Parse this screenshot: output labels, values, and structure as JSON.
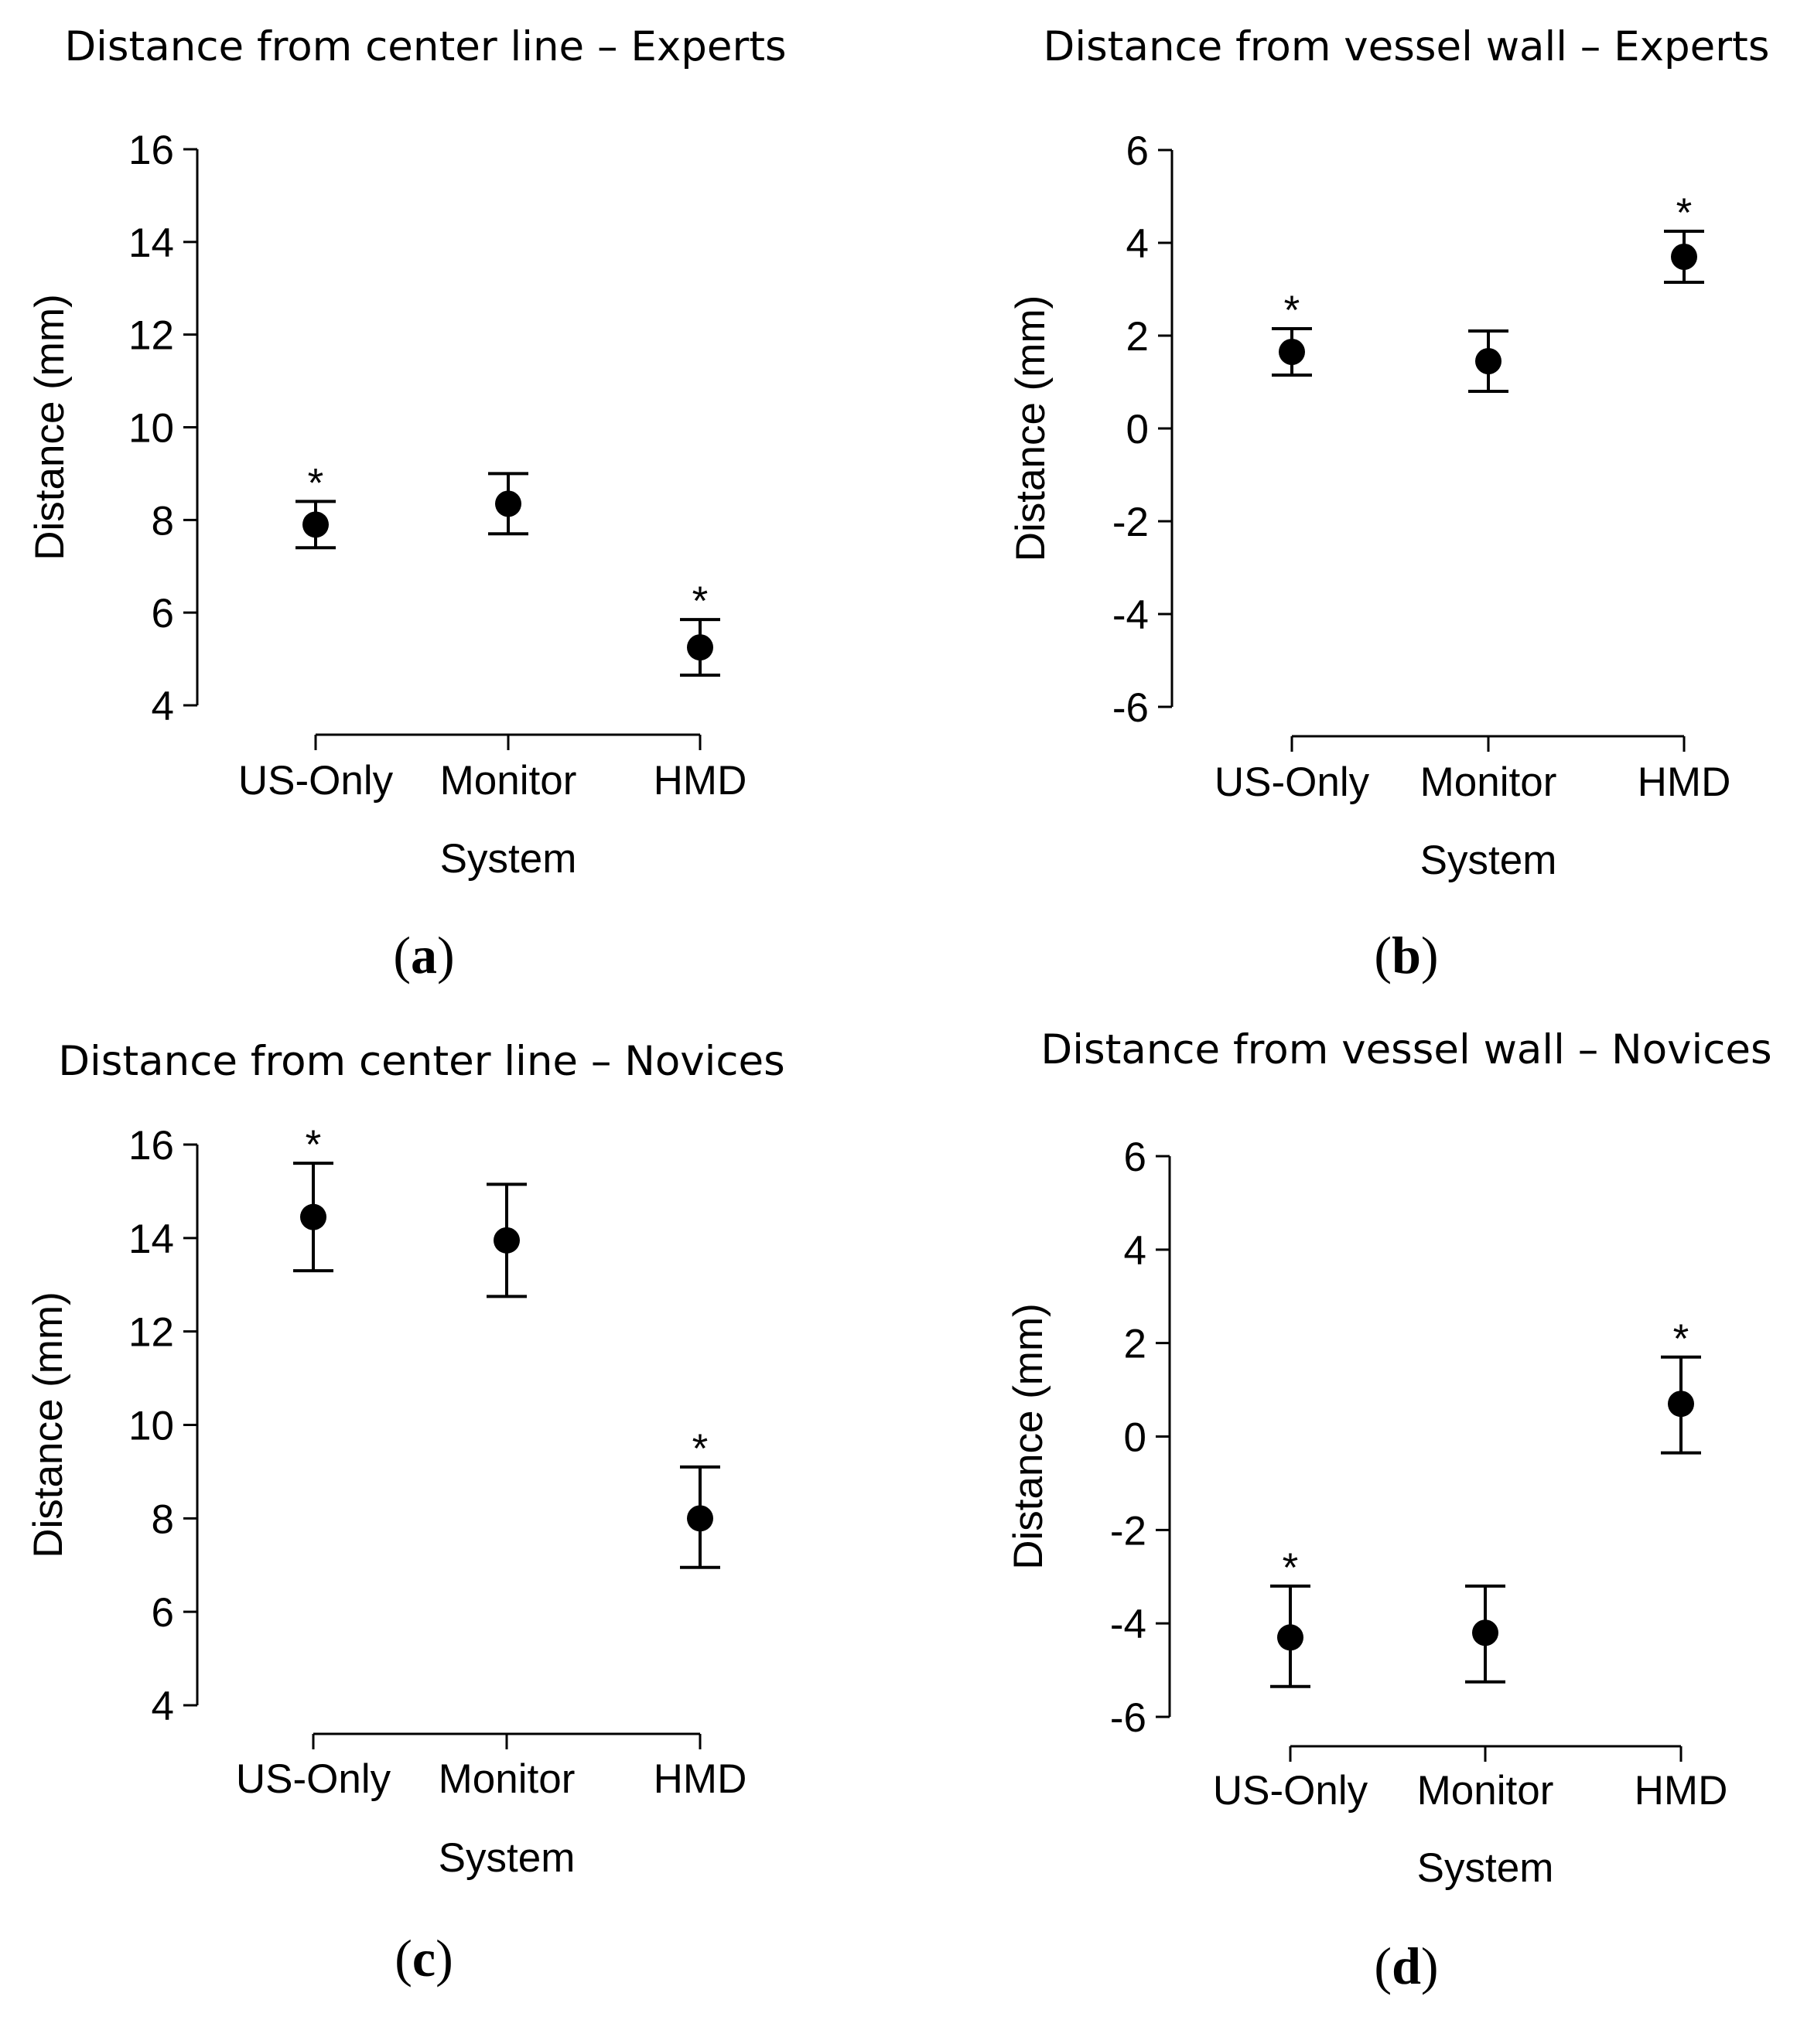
{
  "chart_data": [
    {
      "type": "scatter",
      "panel_label": "a",
      "title": "Distance from center line – Experts",
      "xlabel": "System",
      "ylabel": "Distance (mm)",
      "categories": [
        "US-Only",
        "Monitor",
        "HMD"
      ],
      "yticks": [
        "4",
        "6",
        "8",
        "10",
        "12",
        "14",
        "16"
      ],
      "ylim": [
        4,
        16
      ],
      "values": [
        7.9,
        8.35,
        5.25
      ],
      "error_low": [
        7.4,
        7.7,
        4.65
      ],
      "error_high": [
        8.4,
        9.0,
        5.85
      ],
      "significant": [
        "*",
        "",
        "*"
      ]
    },
    {
      "type": "scatter",
      "panel_label": "b",
      "title": "Distance from vessel wall – Experts",
      "xlabel": "System",
      "ylabel": "Distance (mm)",
      "categories": [
        "US-Only",
        "Monitor",
        "HMD"
      ],
      "yticks": [
        "-6",
        "-4",
        "-2",
        "0",
        "2",
        "4",
        "6"
      ],
      "ylim": [
        -6,
        6
      ],
      "values": [
        1.65,
        1.45,
        3.7
      ],
      "error_low": [
        1.15,
        0.8,
        3.15
      ],
      "error_high": [
        2.15,
        2.1,
        4.25
      ],
      "significant": [
        "*",
        "",
        "*"
      ]
    },
    {
      "type": "scatter",
      "panel_label": "c",
      "title": "Distance from center line – Novices",
      "xlabel": "System",
      "ylabel": "Distance (mm)",
      "categories": [
        "US-Only",
        "Monitor",
        "HMD"
      ],
      "yticks": [
        "4",
        "6",
        "8",
        "10",
        "12",
        "14",
        "16"
      ],
      "ylim": [
        4,
        16
      ],
      "values": [
        14.45,
        13.95,
        8.0
      ],
      "error_low": [
        13.3,
        12.75,
        6.95
      ],
      "error_high": [
        15.6,
        15.15,
        9.1
      ],
      "significant": [
        "*",
        "",
        "*"
      ]
    },
    {
      "type": "scatter",
      "panel_label": "d",
      "title": "Distance from vessel wall – Novices",
      "xlabel": "System",
      "ylabel": "Distance (mm)",
      "categories": [
        "US-Only",
        "Monitor",
        "HMD"
      ],
      "yticks": [
        "-6",
        "-4",
        "-2",
        "0",
        "2",
        "4",
        "6"
      ],
      "ylim": [
        -6,
        6
      ],
      "values": [
        -4.3,
        -4.2,
        0.7
      ],
      "error_low": [
        -5.35,
        -5.25,
        -0.35
      ],
      "error_high": [
        -3.2,
        -3.2,
        1.7
      ],
      "significant": [
        "*",
        "",
        "*"
      ]
    }
  ]
}
